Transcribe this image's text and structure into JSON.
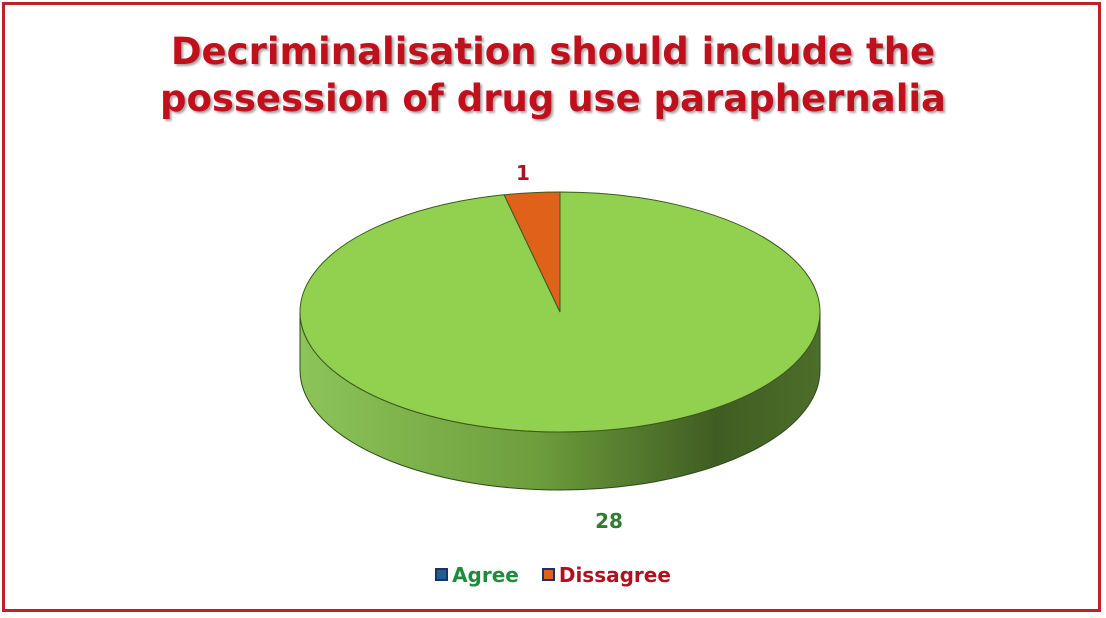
{
  "chart_data": {
    "type": "pie",
    "title_lines": [
      "Decriminalisation should include the",
      "possession of drug use paraphernalia"
    ],
    "slices": [
      {
        "label": "Agree",
        "value": 28,
        "color": "#92d050",
        "label_color": "#2e7d32"
      },
      {
        "label": "Dissagree",
        "value": 1,
        "color": "#e0621a",
        "label_color": "#b01020"
      }
    ],
    "legend_position": "bottom",
    "three_d": true
  },
  "legend": {
    "items": [
      {
        "label": "Agree",
        "color": "#1e8c3a",
        "swatch": "#1f5f8c"
      },
      {
        "label": "Dissagree",
        "color": "#b01020",
        "swatch": "#e0621a"
      }
    ]
  },
  "colors": {
    "frame": "#c0202a",
    "title": "#c0101c"
  }
}
